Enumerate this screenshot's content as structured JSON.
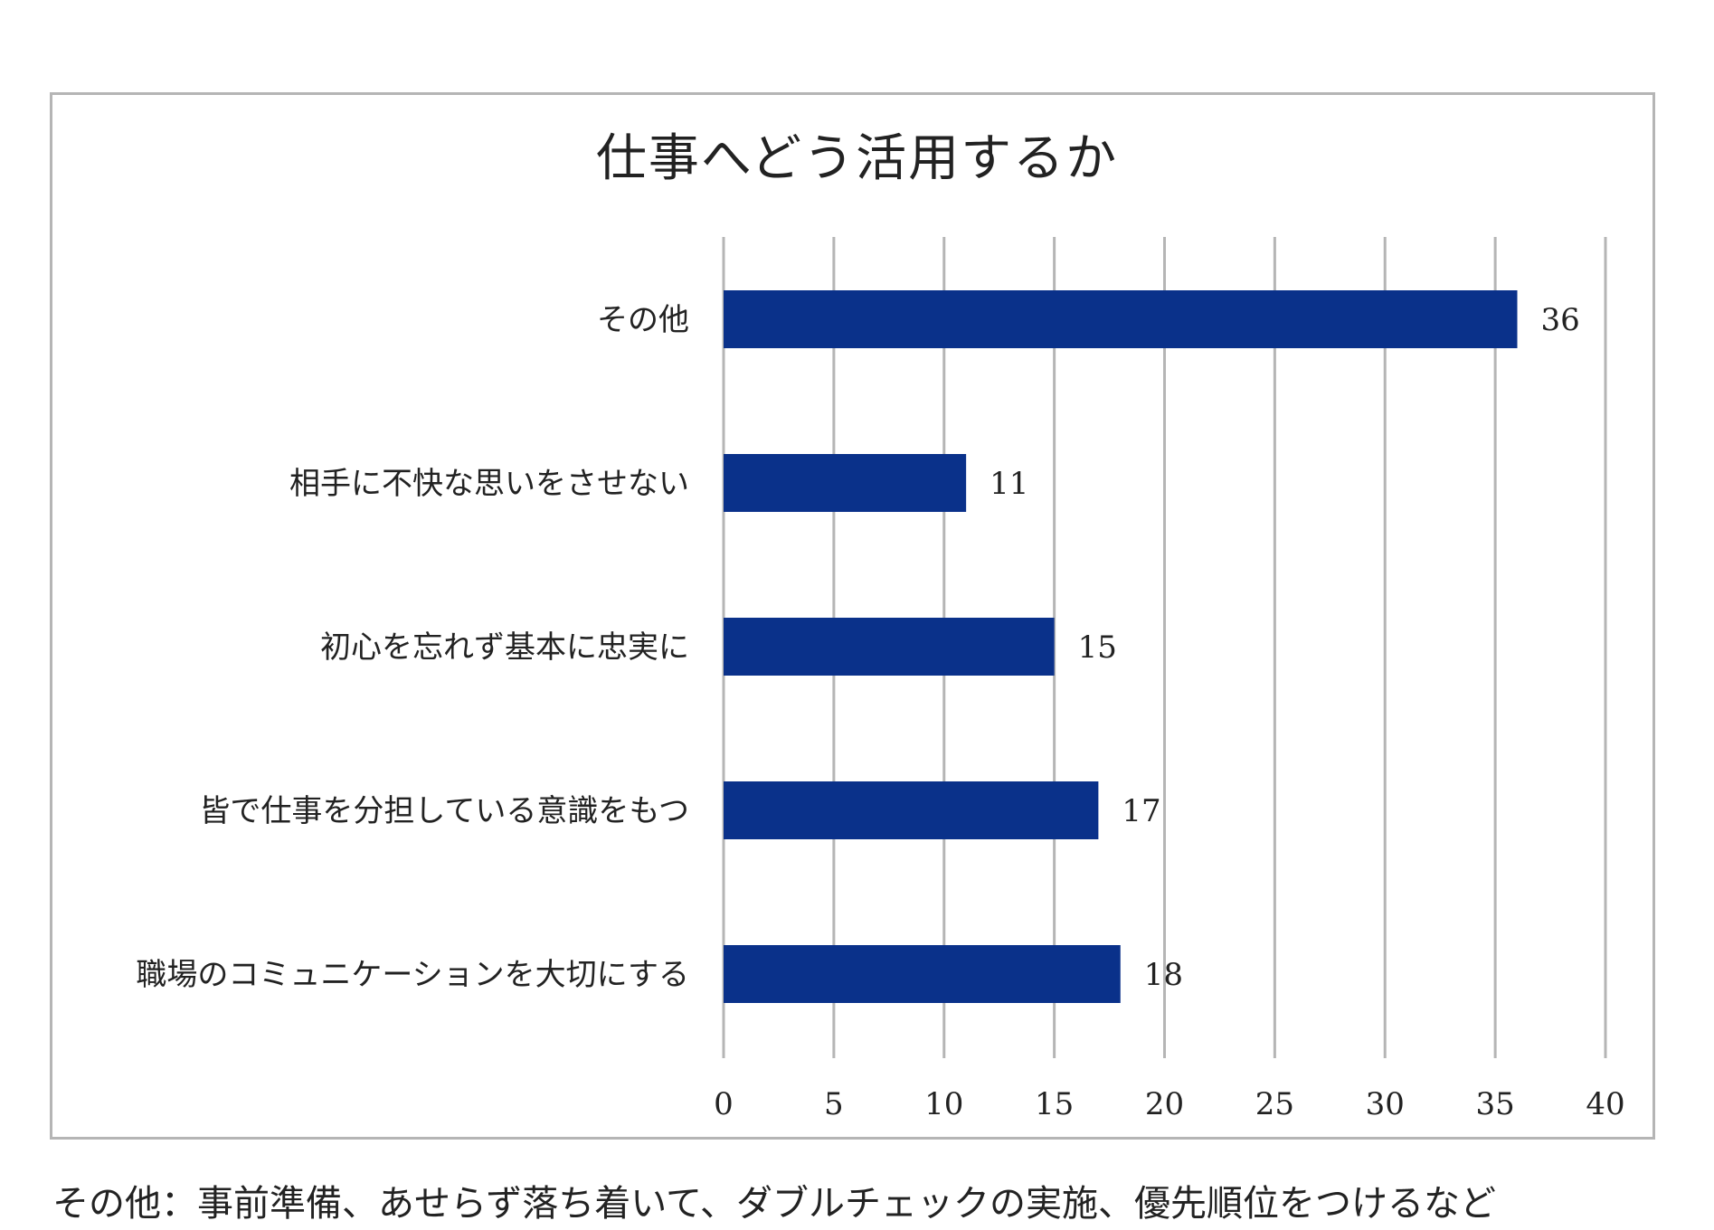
{
  "chart_data": {
    "type": "bar",
    "orientation": "horizontal",
    "title": "仕事へどう活用するか",
    "categories": [
      "その他",
      "相手に不快な思いをさせない",
      "初心を忘れず基本に忠実に",
      "皆で仕事を分担している意識をもつ",
      "職場のコミュニケーションを大切にする"
    ],
    "values": [
      36,
      11,
      15,
      17,
      18
    ],
    "xlim": [
      0,
      40
    ],
    "xticks": [
      0,
      5,
      10,
      15,
      20,
      25,
      30,
      35,
      40
    ],
    "grid": true,
    "legend": "none",
    "bar_color": "#0a318a",
    "grid_color": "#b5b5b5"
  },
  "footnote": "その他：事前準備、あせらず落ち着いて、ダブルチェックの実施、優先順位をつけるなど"
}
